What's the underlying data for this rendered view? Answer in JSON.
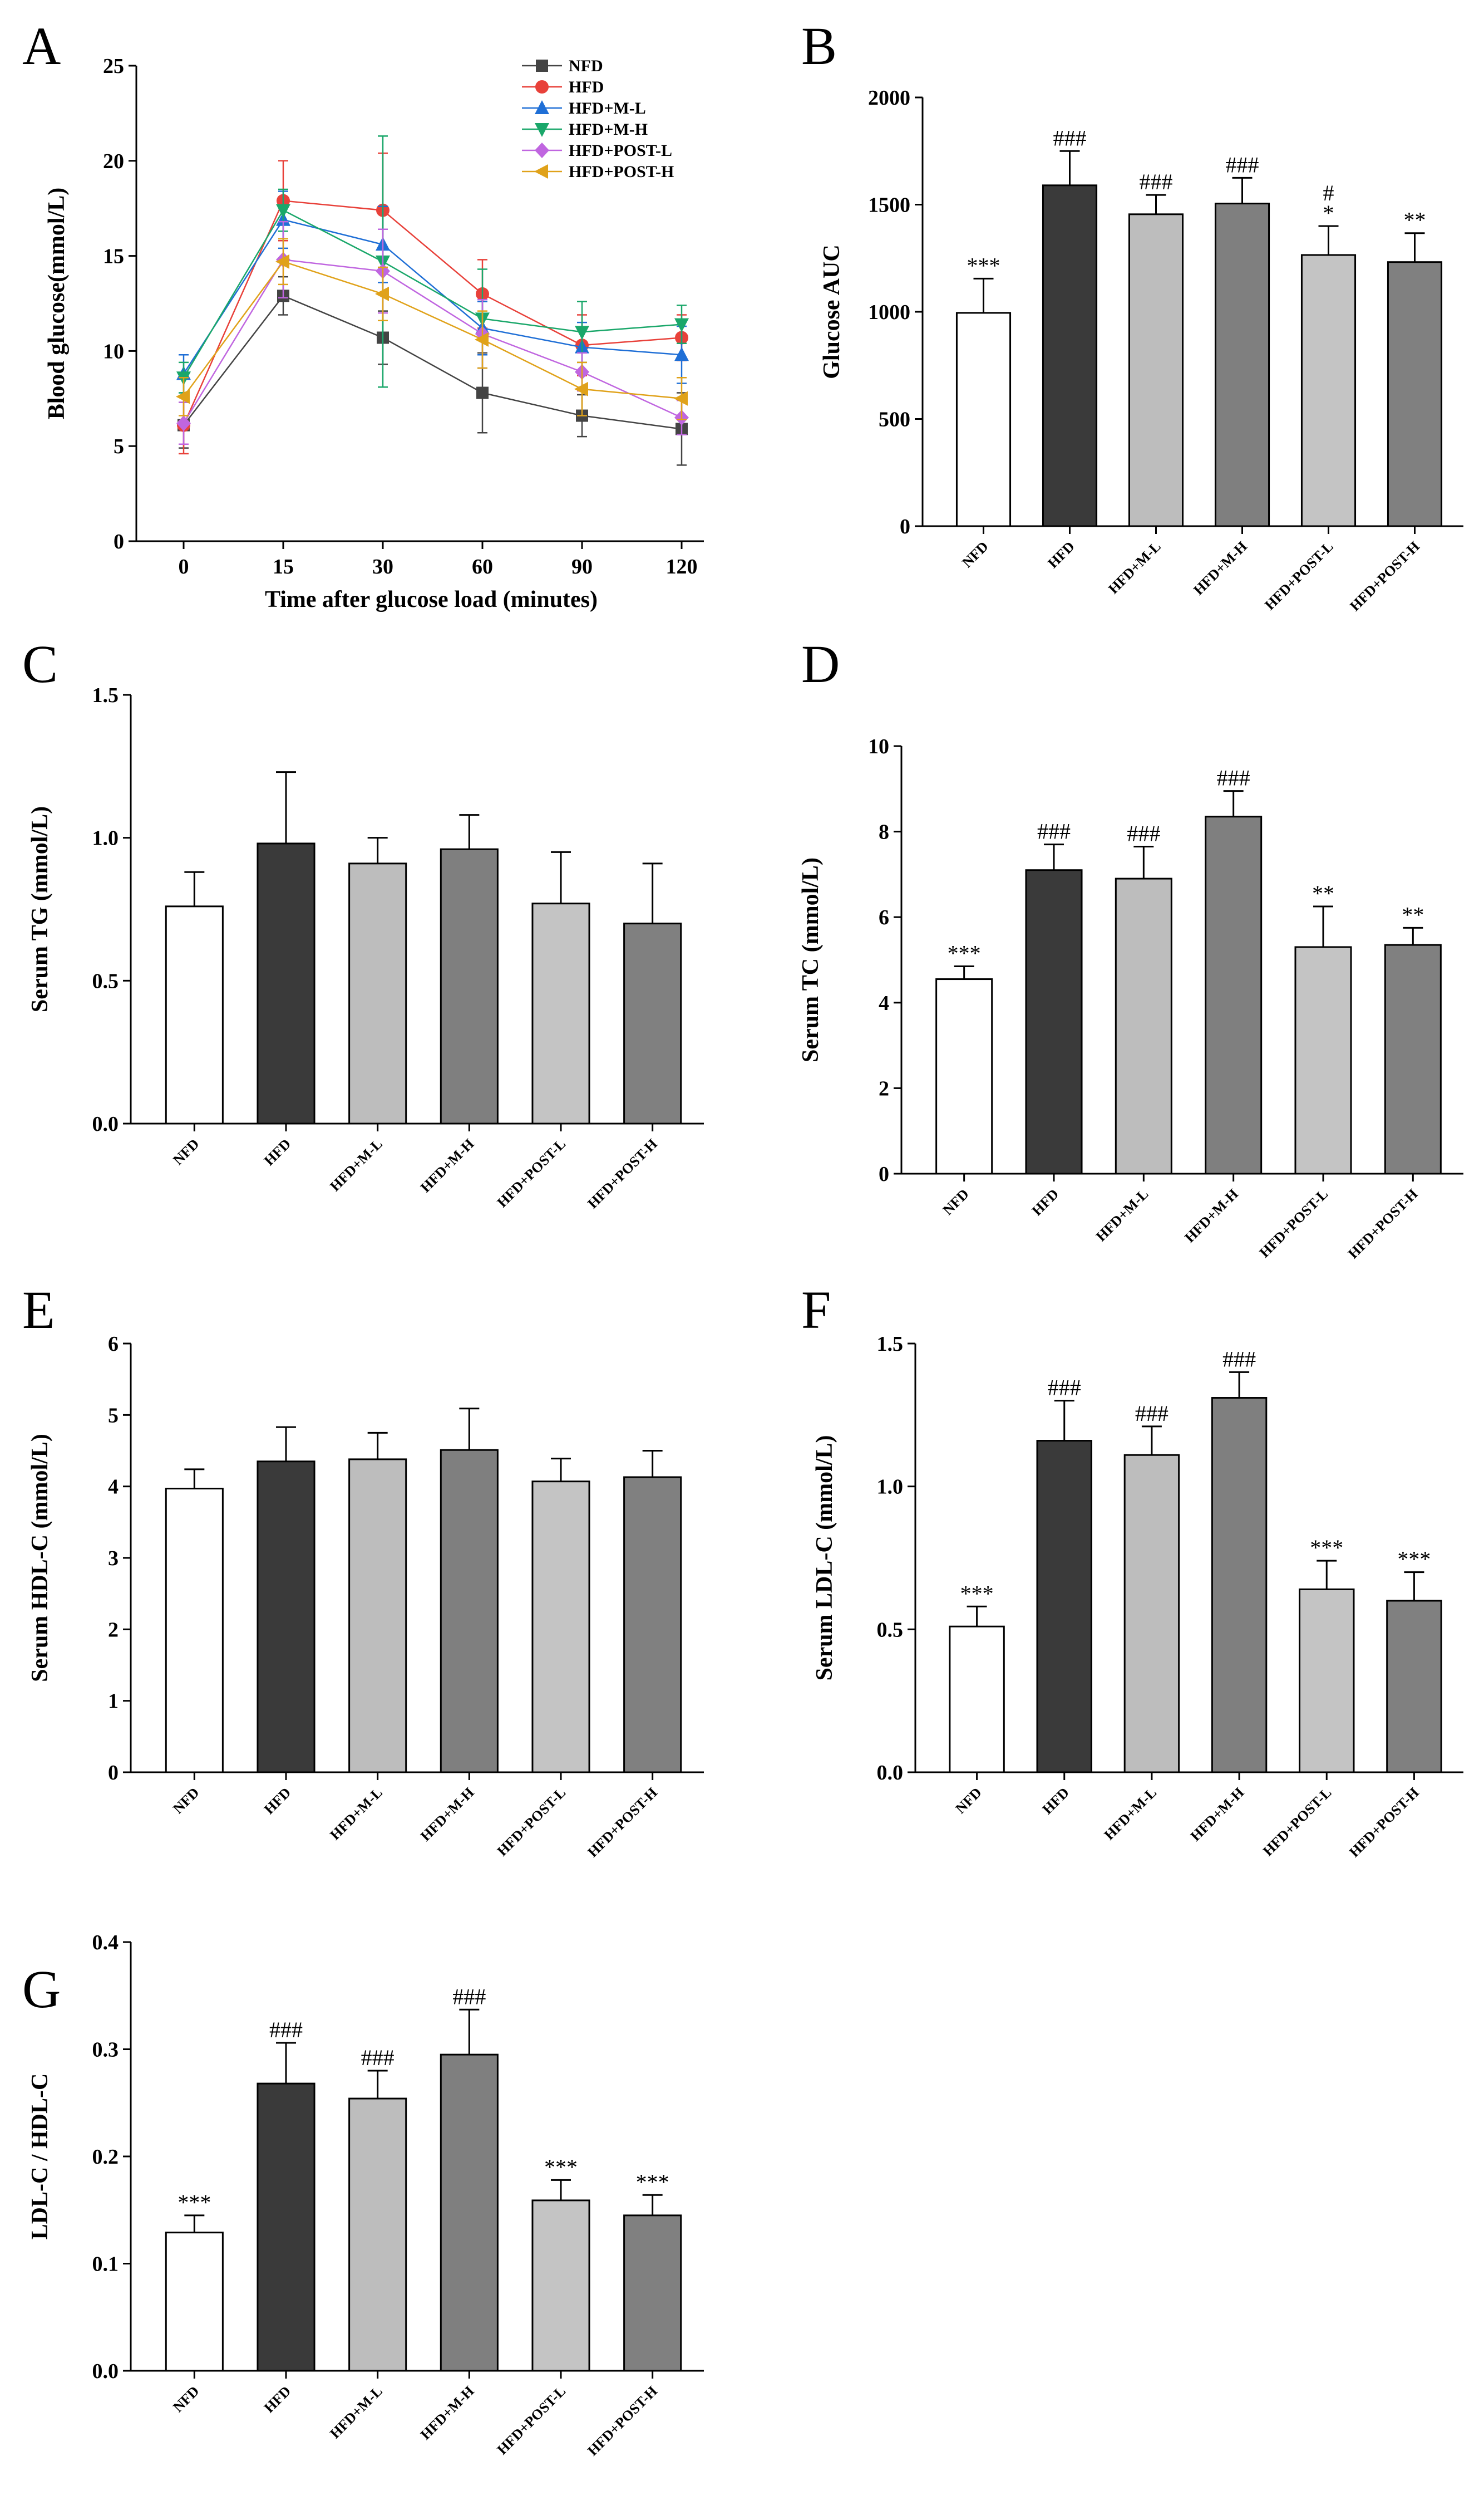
{
  "chart_data": [
    {
      "panel": "A",
      "type": "line",
      "xlabel": "Time after glucose load (minutes)",
      "ylabel": "Blood glucose(mmol/L)",
      "x": [
        "0",
        "15",
        "30",
        "60",
        "90",
        "120"
      ],
      "ylim": [
        0,
        25
      ],
      "yticks": [
        "0",
        "5",
        "10",
        "15",
        "20",
        "25"
      ],
      "legend_position": "top-right",
      "series": [
        {
          "name": "NFD",
          "color": "#444444",
          "marker": "square",
          "values": [
            6.1,
            12.9,
            10.7,
            7.8,
            6.6,
            5.9
          ],
          "errors": [
            1.2,
            1.0,
            1.4,
            2.1,
            1.1,
            1.9
          ]
        },
        {
          "name": "HFD",
          "color": "#e8413a",
          "marker": "circle",
          "values": [
            6.1,
            17.9,
            17.4,
            13.0,
            10.3,
            10.7
          ],
          "errors": [
            1.5,
            2.1,
            3.0,
            1.8,
            1.6,
            1.2
          ]
        },
        {
          "name": "HFD+M-L",
          "color": "#1f6fd6",
          "marker": "triangle-up",
          "values": [
            8.8,
            16.9,
            15.6,
            11.2,
            10.2,
            9.8
          ],
          "errors": [
            1.0,
            1.5,
            2.0,
            1.4,
            1.3,
            1.5
          ]
        },
        {
          "name": "HFD+M-H",
          "color": "#1aa76a",
          "marker": "triangle-down",
          "values": [
            8.6,
            17.4,
            14.7,
            11.7,
            11.0,
            11.4
          ],
          "errors": [
            0.8,
            1.1,
            6.6,
            2.6,
            1.6,
            1.0
          ]
        },
        {
          "name": "HFD+POST-L",
          "color": "#c066e0",
          "marker": "diamond",
          "values": [
            6.2,
            14.8,
            14.2,
            10.9,
            8.9,
            6.5
          ],
          "errors": [
            1.1,
            2.0,
            2.2,
            1.8,
            1.0,
            0.9
          ]
        },
        {
          "name": "HFD+POST-H",
          "color": "#e0a21a",
          "marker": "triangle-left",
          "values": [
            7.6,
            14.7,
            13.0,
            10.6,
            8.0,
            7.5
          ],
          "errors": [
            1.0,
            1.2,
            1.4,
            1.5,
            1.4,
            1.1
          ]
        }
      ]
    },
    {
      "panel": "B",
      "type": "bar",
      "ylabel": "Glucose AUC",
      "ylim": [
        0,
        2000
      ],
      "yticks": [
        "0",
        "500",
        "1000",
        "1500",
        "2000"
      ],
      "categories": [
        "NFD",
        "HFD",
        "HFD+M-L",
        "HFD+M-H",
        "HFD+POST-L",
        "HFD+POST-H"
      ],
      "values": [
        995,
        1590,
        1455,
        1505,
        1265,
        1232
      ],
      "errors": [
        160,
        160,
        90,
        120,
        135,
        135
      ],
      "annotations": [
        "***",
        "###",
        "###",
        "###",
        "#\n*",
        "**"
      ]
    },
    {
      "panel": "C",
      "type": "bar",
      "ylabel": "Serum TG (mmol/L)",
      "ylim": [
        0,
        1.5
      ],
      "yticks": [
        "0.0",
        "0.5",
        "1.0",
        "1.5"
      ],
      "categories": [
        "NFD",
        "HFD",
        "HFD+M-L",
        "HFD+M-H",
        "HFD+POST-L",
        "HFD+POST-H"
      ],
      "values": [
        0.76,
        0.98,
        0.91,
        0.96,
        0.77,
        0.7
      ],
      "errors": [
        0.12,
        0.25,
        0.09,
        0.12,
        0.18,
        0.21
      ],
      "annotations": [
        "",
        "",
        "",
        "",
        "",
        ""
      ]
    },
    {
      "panel": "D",
      "type": "bar",
      "ylabel": "Serum TC (mmol/L)",
      "ylim": [
        0,
        10
      ],
      "yticks": [
        "0",
        "2",
        "4",
        "6",
        "8",
        "10"
      ],
      "categories": [
        "NFD",
        "HFD",
        "HFD+M-L",
        "HFD+M-H",
        "HFD+POST-L",
        "HFD+POST-H"
      ],
      "values": [
        4.55,
        7.1,
        6.9,
        8.35,
        5.3,
        5.35
      ],
      "errors": [
        0.3,
        0.6,
        0.75,
        0.6,
        0.95,
        0.4
      ],
      "annotations": [
        "***",
        "###",
        "###",
        "###",
        "**",
        "**"
      ]
    },
    {
      "panel": "E",
      "type": "bar",
      "ylabel": "Serum HDL-C (mmol/L)",
      "ylim": [
        0,
        6
      ],
      "yticks": [
        "0",
        "1",
        "2",
        "3",
        "4",
        "5",
        "6"
      ],
      "categories": [
        "NFD",
        "HFD",
        "HFD+M-L",
        "HFD+M-H",
        "HFD+POST-L",
        "HFD+POST-H"
      ],
      "values": [
        3.97,
        4.35,
        4.38,
        4.51,
        4.07,
        4.13
      ],
      "errors": [
        0.27,
        0.48,
        0.37,
        0.58,
        0.32,
        0.37
      ],
      "annotations": [
        "",
        "",
        "",
        "",
        "",
        ""
      ]
    },
    {
      "panel": "F",
      "type": "bar",
      "ylabel": "Serum LDL-C (mmol/L)",
      "ylim": [
        0,
        1.5
      ],
      "yticks": [
        "0.0",
        "0.5",
        "1.0",
        "1.5"
      ],
      "categories": [
        "NFD",
        "HFD",
        "HFD+M-L",
        "HFD+M-H",
        "HFD+POST-L",
        "HFD+POST-H"
      ],
      "values": [
        0.51,
        1.16,
        1.11,
        1.31,
        0.64,
        0.6
      ],
      "errors": [
        0.07,
        0.14,
        0.1,
        0.09,
        0.1,
        0.1
      ],
      "annotations": [
        "***",
        "###",
        "###",
        "###",
        "***",
        "***"
      ]
    },
    {
      "panel": "G",
      "type": "bar",
      "ylabel": "LDL-C / HDL-C",
      "ylim": [
        0,
        0.4
      ],
      "yticks": [
        "0.0",
        "0.1",
        "0.2",
        "0.3",
        "0.4"
      ],
      "categories": [
        "NFD",
        "HFD",
        "HFD+M-L",
        "HFD+M-H",
        "HFD+POST-L",
        "HFD+POST-H"
      ],
      "values": [
        0.129,
        0.268,
        0.254,
        0.295,
        0.159,
        0.145
      ],
      "errors": [
        0.016,
        0.038,
        0.026,
        0.042,
        0.019,
        0.019
      ],
      "annotations": [
        "***",
        "###",
        "###",
        "###",
        "***",
        "***"
      ]
    }
  ],
  "bar_colors": [
    "#ffffff",
    "#3a3a3a",
    "#bdbdbd",
    "#7f7f7f",
    "#c4c4c4",
    "#808080"
  ]
}
